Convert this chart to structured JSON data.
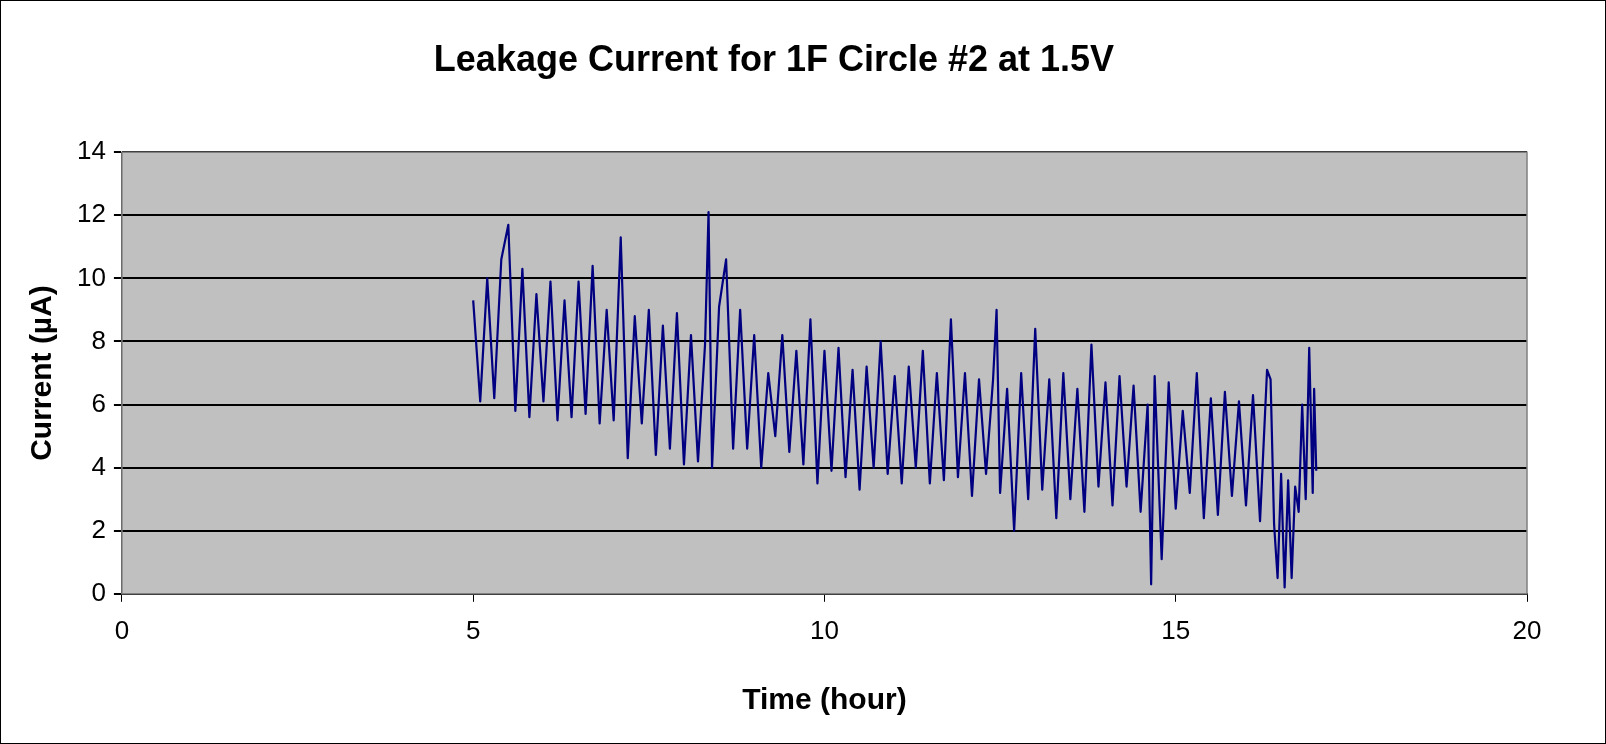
{
  "chart_data": {
    "type": "line",
    "title": "Leakage Current for 1F Circle #2 at 1.5V",
    "xlabel": "Time (hour)",
    "ylabel": "Current (µA)",
    "xlim": [
      0,
      20
    ],
    "xticks": [
      0,
      5,
      10,
      15,
      20
    ],
    "ylim": [
      0,
      14
    ],
    "yticks": [
      0,
      2,
      4,
      6,
      8,
      10,
      12,
      14
    ],
    "grid": "y",
    "legend": false,
    "marker": "none",
    "line_style": "solid",
    "series": [
      {
        "color": "#000080",
        "x": [
          5.0,
          5.1,
          5.2,
          5.3,
          5.4,
          5.5,
          5.6,
          5.7,
          5.8,
          5.9,
          6.0,
          6.1,
          6.2,
          6.3,
          6.4,
          6.5,
          6.6,
          6.7,
          6.8,
          6.9,
          7.0,
          7.1,
          7.2,
          7.3,
          7.4,
          7.5,
          7.6,
          7.7,
          7.8,
          7.9,
          8.0,
          8.1,
          8.2,
          8.3,
          8.35,
          8.4,
          8.5,
          8.6,
          8.7,
          8.8,
          8.9,
          9.0,
          9.1,
          9.2,
          9.3,
          9.4,
          9.5,
          9.6,
          9.7,
          9.8,
          9.9,
          10.0,
          10.1,
          10.2,
          10.3,
          10.4,
          10.5,
          10.6,
          10.7,
          10.8,
          10.9,
          11.0,
          11.1,
          11.2,
          11.3,
          11.4,
          11.5,
          11.6,
          11.7,
          11.8,
          11.9,
          12.0,
          12.1,
          12.2,
          12.3,
          12.4,
          12.45,
          12.5,
          12.6,
          12.7,
          12.8,
          12.9,
          13.0,
          13.1,
          13.2,
          13.3,
          13.4,
          13.5,
          13.6,
          13.7,
          13.8,
          13.9,
          14.0,
          14.1,
          14.2,
          14.3,
          14.4,
          14.5,
          14.6,
          14.65,
          14.7,
          14.8,
          14.9,
          15.0,
          15.1,
          15.2,
          15.3,
          15.4,
          15.5,
          15.6,
          15.7,
          15.8,
          15.9,
          16.0,
          16.1,
          16.2,
          16.3,
          16.35,
          16.4,
          16.45,
          16.5,
          16.55,
          16.6,
          16.65,
          16.7,
          16.75,
          16.8,
          16.85,
          16.9,
          16.95,
          16.97,
          17.0
        ],
        "values": [
          9.3,
          6.1,
          10.0,
          6.2,
          10.6,
          11.7,
          5.8,
          10.3,
          5.6,
          9.5,
          6.1,
          9.9,
          5.5,
          9.3,
          5.6,
          9.9,
          5.7,
          10.4,
          5.4,
          9.0,
          5.5,
          11.3,
          4.3,
          8.8,
          5.4,
          9.0,
          4.4,
          8.5,
          4.6,
          8.9,
          4.1,
          8.2,
          4.2,
          7.9,
          12.1,
          4.0,
          9.1,
          10.6,
          4.6,
          9.0,
          4.6,
          8.2,
          4.0,
          7.0,
          5.0,
          8.2,
          4.5,
          7.7,
          4.1,
          8.7,
          3.5,
          7.7,
          3.9,
          7.8,
          3.7,
          7.1,
          3.3,
          7.2,
          4.0,
          8.0,
          3.8,
          6.9,
          3.5,
          7.2,
          4.0,
          7.7,
          3.5,
          7.0,
          3.6,
          8.7,
          3.7,
          7.0,
          3.1,
          6.8,
          3.8,
          6.8,
          9.0,
          3.2,
          6.5,
          2.0,
          7.0,
          3.0,
          8.4,
          3.3,
          6.8,
          2.4,
          7.0,
          3.0,
          6.5,
          2.6,
          7.9,
          3.4,
          6.7,
          2.8,
          6.9,
          3.4,
          6.6,
          2.6,
          6.0,
          0.3,
          6.9,
          1.1,
          6.7,
          2.7,
          5.8,
          3.2,
          7.0,
          2.4,
          6.2,
          2.5,
          6.4,
          3.1,
          6.1,
          2.8,
          6.3,
          2.3,
          7.1,
          6.8,
          2.2,
          0.5,
          3.8,
          0.2,
          3.6,
          0.5,
          3.4,
          2.6,
          6.0,
          3.0,
          7.8,
          3.2,
          6.5,
          3.9
        ]
      }
    ]
  }
}
